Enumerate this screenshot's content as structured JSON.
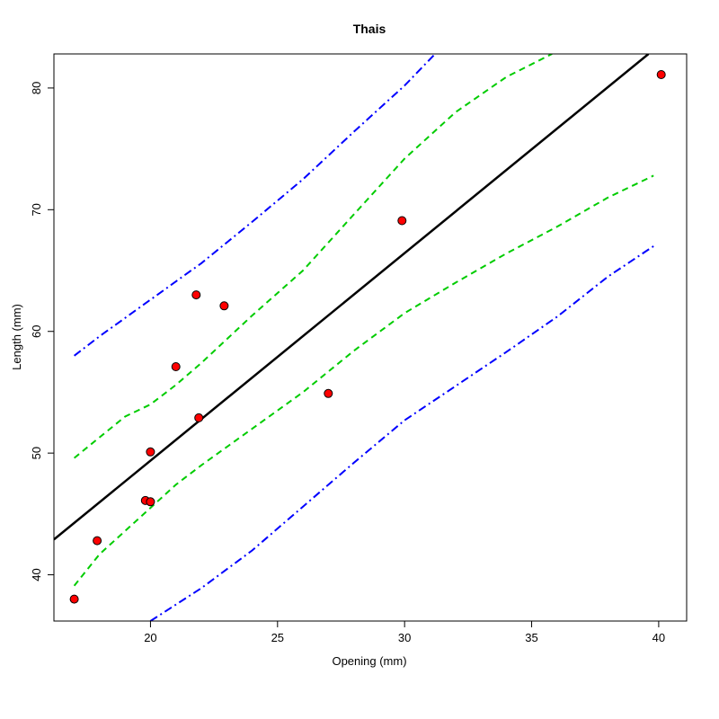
{
  "chart_data": {
    "type": "scatter",
    "title": "Thais",
    "xlabel": "Opening (mm)",
    "ylabel": "Length (mm)",
    "xlim": [
      16.2,
      41.1
    ],
    "ylim": [
      36.2,
      82.8
    ],
    "xticks": [
      20,
      25,
      30,
      35,
      40
    ],
    "yticks": [
      40,
      50,
      60,
      70,
      80
    ],
    "grid": false,
    "points": {
      "name": "observations",
      "color": "#ff0000",
      "x": [
        17.0,
        17.9,
        19.8,
        20.0,
        20.0,
        21.0,
        21.8,
        21.9,
        22.9,
        27.0,
        29.9,
        40.1
      ],
      "y": [
        38.0,
        42.8,
        46.1,
        46.0,
        50.1,
        57.1,
        63.0,
        52.9,
        62.1,
        54.9,
        69.1,
        81.1
      ]
    },
    "fit_line": {
      "name": "fitted line",
      "color": "#000000",
      "x": [
        16.2,
        39.6
      ],
      "y": [
        42.9,
        82.8
      ]
    },
    "confidence_band": {
      "name": "confidence band",
      "color": "#00cc00",
      "upper": {
        "x": [
          17.0,
          18.0,
          19.0,
          20.0,
          21.0,
          22.0,
          24.0,
          26.0,
          28.0,
          30.0,
          32.0,
          34.0,
          35.8
        ],
        "y": [
          49.6,
          51.3,
          53.0,
          54.0,
          55.6,
          57.4,
          61.3,
          65.0,
          69.6,
          74.2,
          78.0,
          80.9,
          82.8
        ]
      },
      "lower": {
        "x": [
          17.0,
          18.0,
          19.0,
          20.0,
          21.0,
          22.0,
          24.0,
          26.0,
          28.0,
          30.0,
          32.0,
          34.0,
          36.0,
          38.0,
          39.8
        ],
        "y": [
          39.1,
          41.7,
          43.6,
          45.5,
          47.4,
          49.0,
          52.0,
          55.0,
          58.4,
          61.5,
          64.0,
          66.4,
          68.6,
          71.0,
          72.8
        ]
      }
    },
    "prediction_band": {
      "name": "prediction band",
      "color": "#0000ff",
      "upper": {
        "x": [
          17.0,
          18.0,
          20.0,
          22.0,
          24.0,
          26.0,
          28.0,
          30.0,
          31.2
        ],
        "y": [
          58.0,
          59.6,
          62.6,
          65.6,
          69.0,
          72.5,
          76.4,
          80.2,
          82.8
        ]
      },
      "lower": {
        "x": [
          20.0,
          22.0,
          24.0,
          26.0,
          28.0,
          30.0,
          32.0,
          34.0,
          36.0,
          38.0,
          39.8
        ],
        "y": [
          36.2,
          38.9,
          42.0,
          45.6,
          49.2,
          52.7,
          55.5,
          58.3,
          61.2,
          64.5,
          67.0
        ]
      }
    }
  }
}
